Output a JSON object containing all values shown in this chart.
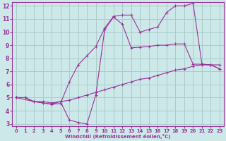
{
  "background_color": "#cce8e8",
  "grid_color": "#aacccc",
  "line_color": "#993399",
  "spine_color": "#993399",
  "xlim": [
    -0.5,
    23.5
  ],
  "ylim": [
    2.8,
    12.3
  ],
  "xlabel": "Windchill (Refroidissement éolien,°C)",
  "yticks": [
    3,
    4,
    5,
    6,
    7,
    8,
    9,
    10,
    11,
    12
  ],
  "xticks": [
    0,
    1,
    2,
    3,
    4,
    5,
    6,
    7,
    8,
    9,
    10,
    11,
    12,
    13,
    14,
    15,
    16,
    17,
    18,
    19,
    20,
    21,
    22,
    23
  ],
  "series": [
    {
      "x": [
        0,
        1,
        2,
        3,
        4,
        5,
        6,
        7,
        8,
        9,
        10,
        11,
        12,
        13,
        14,
        15,
        16,
        17,
        18,
        19,
        20,
        21,
        22,
        23
      ],
      "y": [
        5.0,
        5.0,
        4.7,
        4.7,
        4.6,
        4.7,
        4.8,
        5.0,
        5.2,
        5.4,
        5.6,
        5.8,
        6.0,
        6.2,
        6.4,
        6.5,
        6.7,
        6.9,
        7.1,
        7.2,
        7.4,
        7.5,
        7.5,
        7.5
      ]
    },
    {
      "x": [
        0,
        1,
        2,
        3,
        4,
        5,
        6,
        7,
        8,
        9,
        10,
        11,
        12,
        13,
        14,
        15,
        16,
        17,
        18,
        19,
        20,
        21,
        22,
        23
      ],
      "y": [
        5.0,
        5.0,
        4.7,
        4.6,
        4.5,
        4.7,
        3.3,
        3.1,
        3.0,
        5.2,
        10.2,
        11.15,
        10.6,
        8.8,
        8.85,
        8.9,
        9.0,
        9.0,
        9.1,
        9.1,
        7.55,
        7.55,
        7.5,
        7.2
      ]
    },
    {
      "x": [
        0,
        2,
        3,
        4,
        5,
        6,
        7,
        8,
        9,
        10,
        11,
        12,
        13,
        14,
        15,
        16,
        17,
        18,
        19,
        20,
        21,
        22,
        23
      ],
      "y": [
        5.0,
        4.7,
        4.6,
        4.5,
        4.55,
        6.2,
        7.5,
        8.2,
        8.9,
        10.3,
        11.2,
        11.3,
        11.3,
        10.0,
        10.2,
        10.4,
        11.5,
        12.0,
        12.0,
        12.2,
        7.55,
        7.5,
        7.2
      ]
    }
  ]
}
